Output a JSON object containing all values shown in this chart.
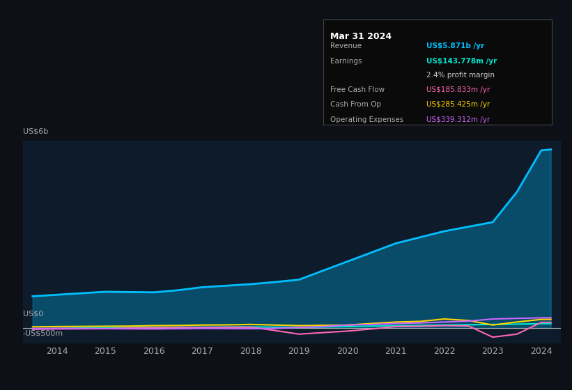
{
  "background_color": "#0d1117",
  "plot_bg_color": "#0d1b2a",
  "title": "Mar 31 2024",
  "ylabel_top": "US$6b",
  "ylabel_zero": "US$0",
  "ylabel_neg": "-US$500m",
  "x_labels": [
    "2014",
    "2015",
    "2016",
    "2017",
    "2018",
    "2019",
    "2020",
    "2021",
    "2022",
    "2023",
    "2024"
  ],
  "ylim": [
    -500,
    6000
  ],
  "colors": {
    "revenue": "#00bfff",
    "earnings": "#00e5cc",
    "free_cash_flow": "#ff69b4",
    "cash_from_op": "#ffd700",
    "operating_expenses": "#cc66ff"
  },
  "tooltip_bg": "#0a0a0a",
  "tooltip_border": "#333333",
  "legend_bg": "#0d1117",
  "legend_border": "#333333",
  "revenue": [
    1100,
    1200,
    1180,
    1350,
    1450,
    1600,
    2200,
    2800,
    3200,
    3500,
    5871
  ],
  "earnings": [
    -20,
    10,
    20,
    30,
    40,
    20,
    50,
    80,
    100,
    120,
    143.778
  ],
  "free_cash_flow": [
    -30,
    -20,
    10,
    20,
    30,
    -200,
    -100,
    50,
    80,
    -300,
    185.833
  ],
  "cash_from_op": [
    50,
    60,
    80,
    100,
    120,
    80,
    100,
    200,
    300,
    100,
    285.425
  ],
  "operating_expenses": [
    -10,
    -20,
    -30,
    -10,
    -20,
    20,
    100,
    150,
    200,
    300,
    339.312
  ],
  "x_years": [
    2013.5,
    2014,
    2014.5,
    2015,
    2015.5,
    2016,
    2016.5,
    2017,
    2017.5,
    2018,
    2018.5,
    2019,
    2019.5,
    2020,
    2020.5,
    2021,
    2021.5,
    2022,
    2022.5,
    2023,
    2023.5,
    2024,
    2024.2
  ],
  "revenue_data": [
    1050,
    1100,
    1150,
    1200,
    1190,
    1180,
    1250,
    1350,
    1400,
    1450,
    1520,
    1600,
    1900,
    2200,
    2500,
    2800,
    3000,
    3200,
    3350,
    3500,
    4500,
    5871,
    5900
  ],
  "earnings_data": [
    -30,
    -20,
    0,
    10,
    15,
    20,
    25,
    30,
    35,
    40,
    30,
    20,
    35,
    50,
    65,
    80,
    90,
    100,
    110,
    120,
    130,
    143.778,
    145
  ],
  "fcf_data": [
    -40,
    -30,
    -25,
    -20,
    0,
    10,
    15,
    20,
    25,
    30,
    -80,
    -200,
    -150,
    -100,
    -30,
    50,
    60,
    80,
    70,
    -300,
    -200,
    185.833,
    190
  ],
  "cfop_data": [
    40,
    50,
    55,
    60,
    65,
    80,
    85,
    100,
    105,
    120,
    100,
    80,
    90,
    100,
    150,
    200,
    220,
    300,
    250,
    100,
    200,
    285.425,
    290
  ],
  "opex_data": [
    -20,
    -10,
    -15,
    -20,
    -25,
    -30,
    -20,
    -10,
    -15,
    -20,
    -10,
    20,
    50,
    100,
    120,
    150,
    170,
    200,
    230,
    300,
    320,
    339.312,
    342
  ]
}
